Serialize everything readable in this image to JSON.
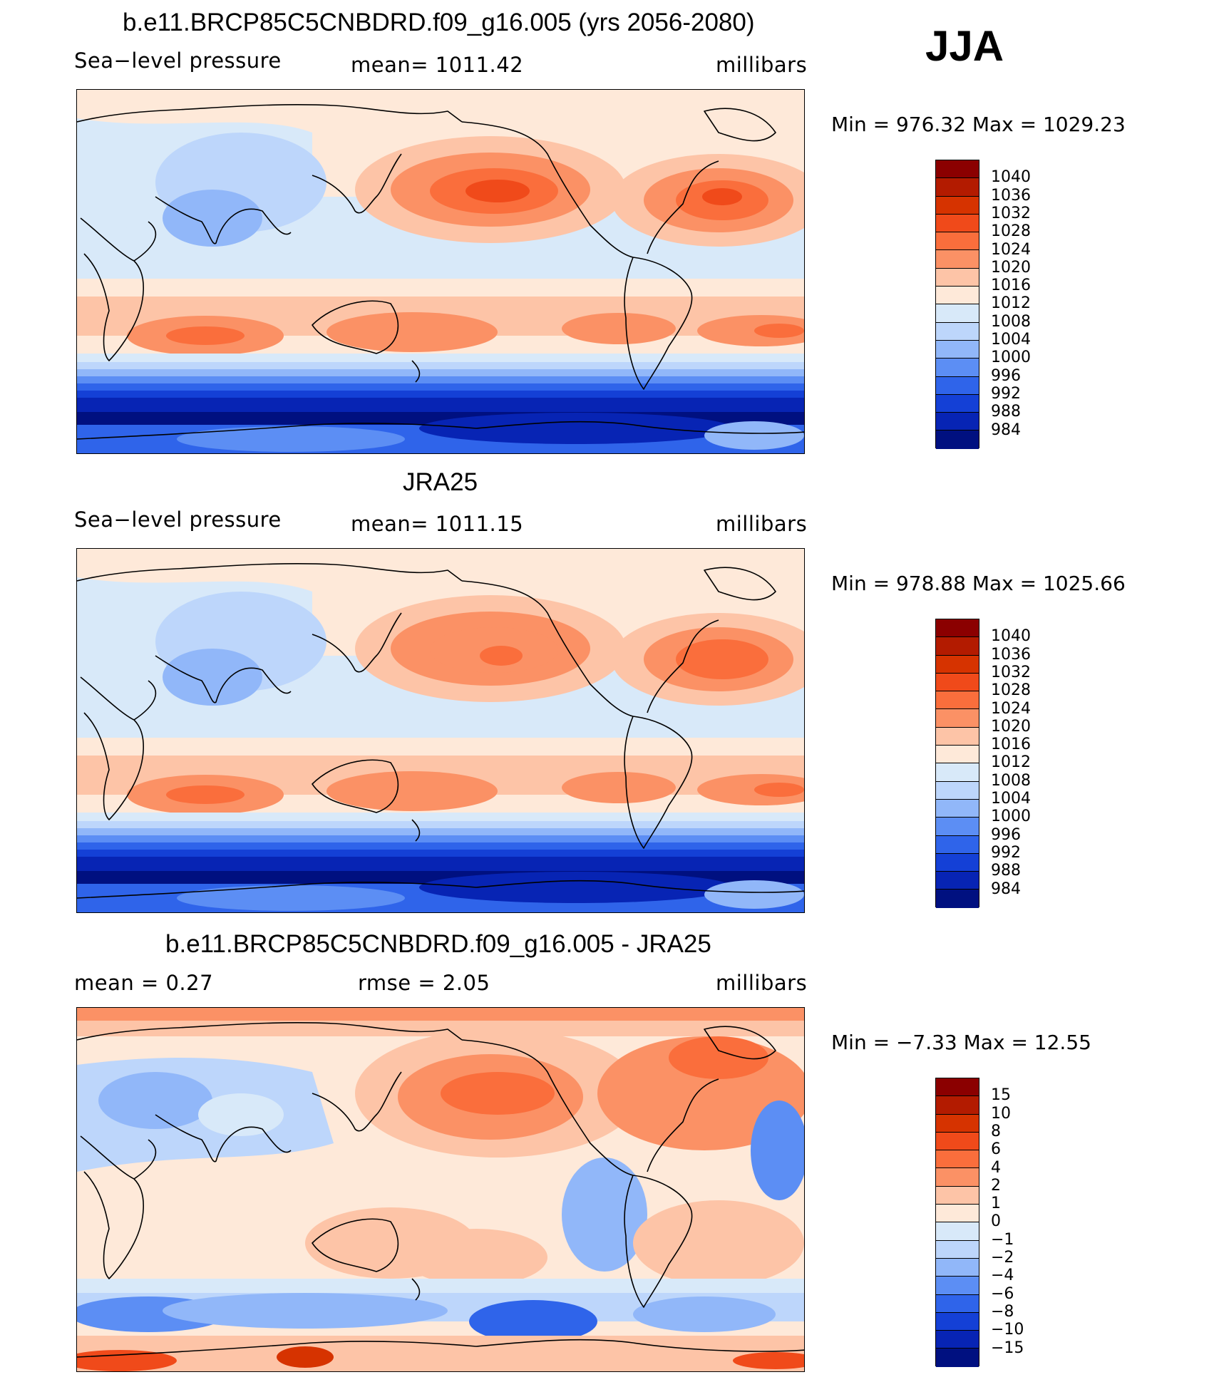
{
  "season": "JJA",
  "palette_slp": [
    "#8b0000",
    "#b31b00",
    "#d63300",
    "#f04a1a",
    "#fa6e3c",
    "#fb9165",
    "#fdc4a7",
    "#fee9d9",
    "#d8e9f9",
    "#bdd6fb",
    "#91b7f9",
    "#5c8ef4",
    "#2f64ea",
    "#1440d6",
    "#0724b4",
    "#001080"
  ],
  "palette_diff": [
    "#8b0000",
    "#b31b00",
    "#d63300",
    "#f04a1a",
    "#fa6e3c",
    "#fb9165",
    "#fdc4a7",
    "#fee9d9",
    "#d8e9f9",
    "#bdd6fb",
    "#91b7f9",
    "#5c8ef4",
    "#2f64ea",
    "#1440d6",
    "#0724b4",
    "#001080"
  ],
  "panels": [
    {
      "title": "b.e11.BRCP85C5CNBDRD.f09_g16.005 (yrs 2056-2080)",
      "left": "Sea−level pressure",
      "center": "mean=  1011.42",
      "right": "millibars",
      "minmax": "Min  =  976.32  Max  =  1029.23",
      "levels": [
        "1040",
        "1036",
        "1032",
        "1028",
        "1024",
        "1020",
        "1016",
        "1012",
        "1008",
        "1004",
        "1000",
        "996",
        "992",
        "988",
        "984"
      ],
      "field": "model"
    },
    {
      "title": "JRA25",
      "left": "Sea−level pressure",
      "center": "mean=  1011.15",
      "right": "millibars",
      "minmax": "Min  =  978.88  Max  =  1025.66",
      "levels": [
        "1040",
        "1036",
        "1032",
        "1028",
        "1024",
        "1020",
        "1016",
        "1012",
        "1008",
        "1004",
        "1000",
        "996",
        "992",
        "988",
        "984"
      ],
      "field": "obs"
    },
    {
      "title": "b.e11.BRCP85C5CNBDRD.f09_g16.005 - JRA25",
      "left": "mean  =     0.27",
      "center": "rmse  =     2.05",
      "right": "millibars",
      "minmax": "Min  =    −7.33  Max  =    12.55",
      "levels": [
        "15",
        "10",
        "8",
        "6",
        "4",
        "2",
        "1",
        "0",
        "−1",
        "−2",
        "−4",
        "−6",
        "−8",
        "−10",
        "−15"
      ],
      "field": "diff"
    }
  ]
}
